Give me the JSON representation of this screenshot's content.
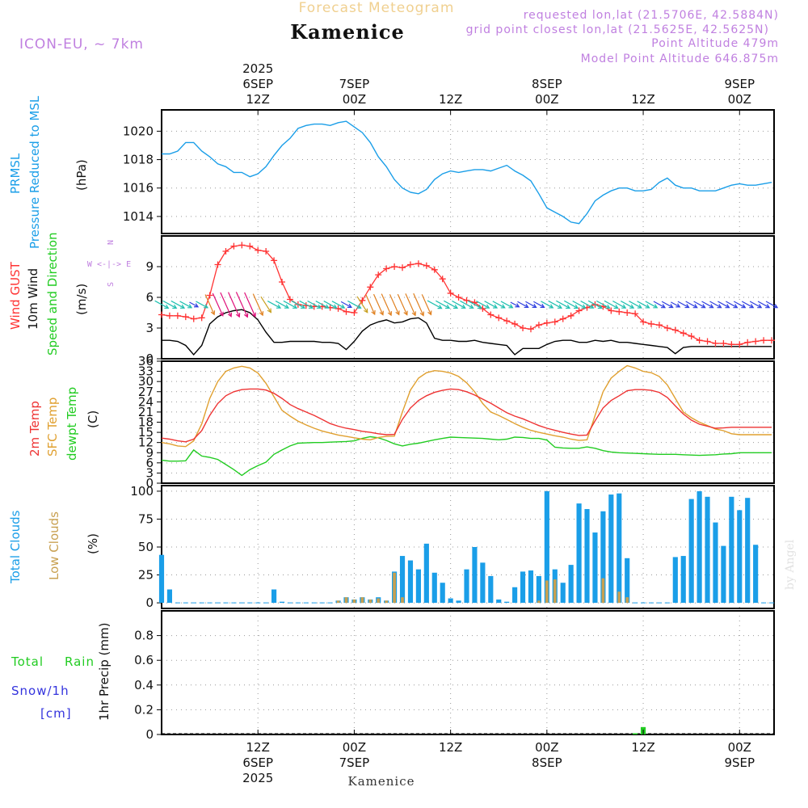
{
  "header": {
    "product": "Forecast Meteogram",
    "station": "Kamenice",
    "model": "ICON-EU, ~ 7km",
    "requested": "requested lon,lat (21.5706E, 42.5884N)",
    "gridpoint": "grid point closest lon,lat (21.5625E, 42.5625N)",
    "point_alt": "Point Altitude 479m",
    "model_alt": "Model Point Altitude 646.875m",
    "footer_station": "Kamenice",
    "watermark": "by Angel"
  },
  "colors": {
    "pressure": "#1a9ee8",
    "gust": "#ff3333",
    "wind": "#000000",
    "temp": "#ee3333",
    "sfc": "#e0a030",
    "dewpt": "#22cc22",
    "clouds_total": "#1a9ee8",
    "clouds_low": "#c8a050",
    "rain": "#22cc22",
    "snow": "#3333dd",
    "header": "#c080e0",
    "product": "#f0d090"
  },
  "time_axis": {
    "top": [
      {
        "t": 12,
        "lines": [
          "2025",
          "6SEP",
          "12Z"
        ]
      },
      {
        "t": 24,
        "lines": [
          "7SEP",
          "00Z"
        ]
      },
      {
        "t": 36,
        "lines": [
          "12Z"
        ]
      },
      {
        "t": 48,
        "lines": [
          "8SEP",
          "00Z"
        ]
      },
      {
        "t": 60,
        "lines": [
          "12Z"
        ]
      },
      {
        "t": 72,
        "lines": [
          "9SEP",
          "00Z"
        ]
      }
    ],
    "bottom": [
      {
        "t": 12,
        "lines": [
          "12Z",
          "6SEP",
          "2025"
        ]
      },
      {
        "t": 24,
        "lines": [
          "00Z",
          "7SEP"
        ]
      },
      {
        "t": 36,
        "lines": [
          "12Z"
        ]
      },
      {
        "t": 48,
        "lines": [
          "00Z",
          "8SEP"
        ]
      },
      {
        "t": 60,
        "lines": [
          "12Z"
        ]
      },
      {
        "t": 72,
        "lines": [
          "00Z",
          "9SEP"
        ]
      }
    ]
  },
  "chart_data": [
    {
      "type": "line",
      "title": "PRMSL Pressure Reduced to MSL",
      "ylabel": "(hPa)",
      "ylim": [
        1012.8,
        1021.5
      ],
      "yticks": [
        1014,
        1016,
        1018,
        1020
      ],
      "x": [
        0,
        1,
        2,
        3,
        4,
        5,
        6,
        7,
        8,
        9,
        10,
        11,
        12,
        13,
        14,
        15,
        16,
        17,
        18,
        19,
        20,
        21,
        22,
        23,
        24,
        25,
        26,
        27,
        28,
        29,
        30,
        31,
        32,
        33,
        34,
        35,
        36,
        37,
        38,
        39,
        40,
        41,
        42,
        43,
        44,
        45,
        46,
        47,
        48,
        49,
        50,
        51,
        52,
        53,
        54,
        55,
        56,
        57,
        58,
        59,
        60,
        61,
        62,
        63,
        64,
        65,
        66,
        67,
        68,
        69,
        70,
        71,
        72,
        73,
        74,
        75,
        76
      ],
      "series": [
        {
          "name": "PRMSL",
          "values": [
            1018.4,
            1018.4,
            1018.6,
            1019.2,
            1019.2,
            1018.6,
            1018.2,
            1017.7,
            1017.5,
            1017.1,
            1017.1,
            1016.8,
            1017.0,
            1017.5,
            1018.3,
            1019.0,
            1019.5,
            1020.2,
            1020.4,
            1020.5,
            1020.5,
            1020.4,
            1020.6,
            1020.7,
            1020.3,
            1019.9,
            1019.2,
            1018.2,
            1017.5,
            1016.6,
            1016.0,
            1015.7,
            1015.6,
            1015.9,
            1016.6,
            1017.0,
            1017.2,
            1017.1,
            1017.2,
            1017.3,
            1017.3,
            1017.2,
            1017.4,
            1017.6,
            1017.2,
            1016.9,
            1016.5,
            1015.6,
            1014.6,
            1014.3,
            1014.0,
            1013.6,
            1013.5,
            1014.2,
            1015.1,
            1015.5,
            1015.8,
            1016.0,
            1016.0,
            1015.8,
            1015.8,
            1015.9,
            1016.4,
            1016.7,
            1016.2,
            1016.0,
            1016.0,
            1015.8,
            1015.8,
            1015.8,
            1016.0,
            1016.2,
            1016.3,
            1016.2,
            1016.2,
            1016.3,
            1016.4
          ]
        }
      ]
    },
    {
      "type": "line",
      "title": "Wind GUST 10m Wind Speed and Direction",
      "ylabel": "(m/s)",
      "ylim": [
        0,
        12
      ],
      "yticks": [
        0,
        3,
        6,
        9
      ],
      "compass": [
        "N",
        "W <-|-> E",
        "S"
      ],
      "x": [
        0,
        1,
        2,
        3,
        4,
        5,
        6,
        7,
        8,
        9,
        10,
        11,
        12,
        13,
        14,
        15,
        16,
        17,
        18,
        19,
        20,
        21,
        22,
        23,
        24,
        25,
        26,
        27,
        28,
        29,
        30,
        31,
        32,
        33,
        34,
        35,
        36,
        37,
        38,
        39,
        40,
        41,
        42,
        43,
        44,
        45,
        46,
        47,
        48,
        49,
        50,
        51,
        52,
        53,
        54,
        55,
        56,
        57,
        58,
        59,
        60,
        61,
        62,
        63,
        64,
        65,
        66,
        67,
        68,
        69,
        70,
        71,
        72,
        73,
        74,
        75,
        76
      ],
      "series": [
        {
          "name": "Wind GUST",
          "values": [
            4.3,
            4.2,
            4.2,
            4.1,
            3.9,
            4.0,
            6.2,
            9.2,
            10.5,
            11.0,
            11.1,
            11.0,
            10.6,
            10.5,
            9.6,
            7.5,
            5.8,
            5.3,
            5.2,
            5.1,
            5.1,
            5.0,
            4.9,
            4.6,
            4.5,
            5.7,
            7.0,
            8.2,
            8.8,
            9.0,
            8.9,
            9.2,
            9.3,
            9.1,
            8.7,
            7.8,
            6.4,
            6.0,
            5.7,
            5.5,
            4.9,
            4.3,
            4.0,
            3.7,
            3.4,
            3.0,
            2.9,
            3.3,
            3.5,
            3.6,
            3.9,
            4.2,
            4.7,
            5.0,
            5.3,
            5.1,
            4.7,
            4.6,
            4.5,
            4.4,
            3.6,
            3.4,
            3.3,
            3.0,
            2.8,
            2.5,
            2.2,
            1.8,
            1.7,
            1.5,
            1.5,
            1.4,
            1.4,
            1.6,
            1.7,
            1.8,
            1.8
          ]
        },
        {
          "name": "10m Wind",
          "values": [
            1.8,
            1.8,
            1.7,
            1.3,
            0.4,
            1.3,
            3.4,
            4.1,
            4.5,
            4.7,
            4.8,
            4.5,
            3.8,
            2.6,
            1.6,
            1.6,
            1.7,
            1.7,
            1.7,
            1.7,
            1.6,
            1.6,
            1.5,
            0.9,
            1.7,
            2.7,
            3.3,
            3.6,
            3.8,
            3.5,
            3.6,
            3.9,
            4.0,
            3.5,
            2.0,
            1.8,
            1.8,
            1.7,
            1.7,
            1.8,
            1.6,
            1.5,
            1.4,
            1.3,
            0.4,
            1.0,
            1.0,
            1.0,
            1.4,
            1.7,
            1.8,
            1.8,
            1.6,
            1.6,
            1.8,
            1.7,
            1.8,
            1.6,
            1.6,
            1.5,
            1.4,
            1.3,
            1.2,
            1.1,
            0.5,
            1.1,
            1.2,
            1.2,
            1.2,
            1.2,
            1.2,
            1.2,
            1.2,
            1.2,
            1.2,
            1.2,
            1.2
          ]
        }
      ]
    },
    {
      "type": "line",
      "title": "2m Temp SFC Temp dewpt Temp",
      "ylabel": "(C)",
      "ylim": [
        0,
        36
      ],
      "yticks": [
        0,
        3,
        6,
        9,
        12,
        15,
        18,
        21,
        24,
        27,
        30,
        33,
        36
      ],
      "x": [
        0,
        1,
        2,
        3,
        4,
        5,
        6,
        7,
        8,
        9,
        10,
        11,
        12,
        13,
        14,
        15,
        16,
        17,
        18,
        19,
        20,
        21,
        22,
        23,
        24,
        25,
        26,
        27,
        28,
        29,
        30,
        31,
        32,
        33,
        34,
        35,
        36,
        37,
        38,
        39,
        40,
        41,
        42,
        43,
        44,
        45,
        46,
        47,
        48,
        49,
        50,
        51,
        52,
        53,
        54,
        55,
        56,
        57,
        58,
        59,
        60,
        61,
        62,
        63,
        64,
        65,
        66,
        67,
        68,
        69,
        70,
        71,
        72,
        73,
        74,
        75,
        76
      ],
      "series": [
        {
          "name": "2m Temp",
          "values": [
            13.3,
            13.0,
            12.5,
            12.2,
            13.0,
            15.5,
            20.0,
            23.5,
            25.8,
            27.0,
            27.6,
            27.8,
            27.8,
            27.5,
            26.5,
            25.0,
            23.2,
            22.0,
            21.0,
            20.0,
            18.8,
            17.6,
            16.8,
            16.2,
            15.8,
            15.3,
            15.0,
            14.6,
            14.3,
            14.4,
            18.8,
            22.2,
            24.4,
            25.8,
            26.8,
            27.4,
            27.8,
            27.6,
            27.0,
            26.0,
            24.8,
            23.6,
            22.2,
            20.8,
            19.8,
            19.0,
            18.0,
            17.0,
            16.2,
            15.6,
            15.0,
            14.5,
            14.1,
            14.2,
            18.4,
            22.2,
            24.4,
            25.8,
            27.3,
            27.6,
            27.6,
            27.4,
            26.8,
            25.3,
            22.8,
            20.4,
            18.6,
            17.4,
            16.8,
            16.2,
            16.3,
            16.5,
            16.5,
            16.5,
            16.5,
            16.5,
            16.5
          ]
        },
        {
          "name": "SFC Temp",
          "values": [
            12.0,
            11.6,
            11.0,
            10.8,
            12.5,
            17.5,
            25.0,
            30.0,
            33.0,
            34.0,
            34.5,
            34.0,
            32.5,
            29.5,
            25.5,
            21.5,
            19.8,
            18.3,
            17.2,
            16.2,
            15.4,
            14.8,
            14.2,
            13.8,
            13.4,
            13.0,
            12.8,
            13.5,
            13.8,
            13.9,
            21.0,
            27.5,
            31.0,
            32.6,
            33.2,
            33.0,
            32.5,
            31.5,
            29.6,
            27.0,
            23.5,
            21.0,
            20.0,
            18.8,
            17.6,
            16.5,
            15.6,
            15.0,
            14.5,
            14.0,
            13.6,
            13.0,
            12.6,
            12.8,
            20.0,
            27.0,
            31.0,
            33.0,
            34.7,
            34.0,
            33.0,
            32.6,
            31.5,
            29.0,
            25.0,
            21.0,
            19.3,
            18.0,
            17.0,
            16.0,
            15.5,
            14.6,
            14.3,
            14.3,
            14.3,
            14.3,
            14.3
          ]
        },
        {
          "name": "dewpt Temp",
          "values": [
            6.8,
            6.5,
            6.5,
            6.6,
            9.8,
            8.0,
            7.6,
            7.0,
            5.5,
            4.0,
            2.3,
            4.0,
            5.2,
            6.2,
            8.5,
            9.8,
            11.0,
            11.8,
            11.9,
            12.0,
            12.0,
            12.1,
            12.2,
            12.3,
            12.5,
            13.2,
            13.7,
            13.4,
            12.6,
            11.6,
            11.0,
            11.5,
            11.8,
            12.3,
            12.8,
            13.2,
            13.6,
            13.5,
            13.4,
            13.3,
            13.2,
            13.0,
            12.8,
            13.0,
            13.6,
            13.5,
            13.2,
            13.2,
            12.7,
            10.6,
            10.4,
            10.3,
            10.3,
            10.7,
            10.3,
            9.6,
            9.2,
            9.0,
            8.9,
            8.8,
            8.7,
            8.6,
            8.5,
            8.5,
            8.5,
            8.4,
            8.3,
            8.2,
            8.3,
            8.4,
            8.6,
            8.7,
            9.0,
            9.0,
            9.0,
            9.0,
            9.0
          ]
        }
      ]
    },
    {
      "type": "bar",
      "title": "Total Clouds Low Clouds",
      "ylabel": "(%)",
      "ylim": [
        -5,
        105
      ],
      "yticks": [
        0,
        25,
        50,
        75,
        100
      ],
      "x": [
        0,
        1,
        2,
        3,
        4,
        5,
        6,
        7,
        8,
        9,
        10,
        11,
        12,
        13,
        14,
        15,
        16,
        17,
        18,
        19,
        20,
        21,
        22,
        23,
        24,
        25,
        26,
        27,
        28,
        29,
        30,
        31,
        32,
        33,
        34,
        35,
        36,
        37,
        38,
        39,
        40,
        41,
        42,
        43,
        44,
        45,
        46,
        47,
        48,
        49,
        50,
        51,
        52,
        53,
        54,
        55,
        56,
        57,
        58,
        59,
        60,
        61,
        62,
        63,
        64,
        65,
        66,
        67,
        68,
        69,
        70,
        71,
        72,
        73,
        74,
        75,
        76
      ],
      "series": [
        {
          "name": "Total Clouds",
          "values": [
            43,
            12,
            0,
            0,
            0,
            0,
            0,
            0,
            0,
            0,
            0,
            0,
            0,
            0,
            12,
            1,
            0,
            0,
            0,
            0,
            0,
            0,
            2,
            5,
            3,
            5,
            3,
            5,
            2,
            28,
            42,
            38,
            30,
            53,
            27,
            18,
            4,
            2,
            30,
            50,
            36,
            24,
            3,
            1,
            14,
            28,
            29,
            24,
            100,
            30,
            18,
            34,
            89,
            84,
            63,
            82,
            97,
            98,
            40,
            0,
            0,
            0,
            0,
            0,
            41,
            42,
            93,
            100,
            95,
            72,
            51,
            95,
            83,
            94,
            52,
            0,
            0
          ]
        },
        {
          "name": "Low Clouds",
          "values": [
            0,
            0,
            0,
            0,
            0,
            0,
            0,
            0,
            0,
            0,
            0,
            0,
            0,
            0,
            0,
            0,
            0,
            0,
            0,
            0,
            0,
            0,
            2,
            5,
            3,
            5,
            3,
            4,
            2,
            27,
            5,
            0,
            0,
            0,
            0,
            0,
            0,
            0,
            0,
            0,
            0,
            0,
            0,
            0,
            0,
            0,
            0,
            2,
            20,
            21,
            0,
            0,
            0,
            0,
            0,
            22,
            0,
            10,
            5,
            0,
            0,
            0,
            0,
            0,
            0,
            0,
            0,
            0,
            0,
            0,
            0,
            0,
            0,
            0,
            0,
            0,
            0
          ]
        }
      ]
    },
    {
      "type": "bar",
      "title": "Total Rain Snow/1h [cm]",
      "ylabel": "1hr Precip (mm)",
      "ylim": [
        0,
        1.0
      ],
      "yticks": [
        0,
        0.2,
        0.4,
        0.6,
        0.8
      ],
      "x": [
        59,
        60,
        61
      ],
      "series": [
        {
          "name": "Total Rain",
          "values": [
            0.01,
            0.06,
            0.0
          ]
        },
        {
          "name": "Snow/1h",
          "values": [
            0,
            0,
            0
          ]
        }
      ]
    }
  ],
  "labels": {
    "p1": [
      "PRMSL",
      "Pressure Reduced to MSL",
      "(hPa)"
    ],
    "p2": [
      "Wind GUST",
      "10m Wind",
      "Speed and Direction",
      "(m/s)"
    ],
    "p3": [
      "2m Temp",
      "SFC Temp",
      "dewpt Temp",
      "(C)"
    ],
    "p4": [
      "Total Clouds",
      "Low Clouds",
      "(%)"
    ],
    "p5": [
      "Total",
      "Rain",
      "Snow/1h",
      "[cm]",
      "1hr Precip (mm)"
    ]
  }
}
